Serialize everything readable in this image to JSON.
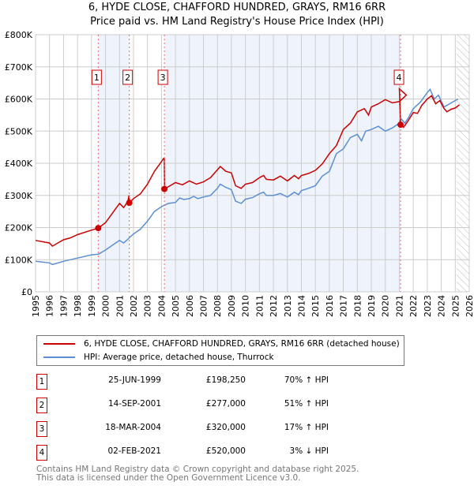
{
  "chart_data": {
    "type": "line",
    "title": "6, HYDE CLOSE, CHAFFORD HUNDRED, GRAYS, RM16 6RR",
    "subtitle": "Price paid vs. HM Land Registry's House Price Index (HPI)",
    "xlim": [
      1995,
      2026
    ],
    "ylim": [
      0,
      800000
    ],
    "yticks": [
      {
        "v": 0,
        "label": "£0"
      },
      {
        "v": 100000,
        "label": "£100K"
      },
      {
        "v": 200000,
        "label": "£200K"
      },
      {
        "v": 300000,
        "label": "£300K"
      },
      {
        "v": 400000,
        "label": "£400K"
      },
      {
        "v": 500000,
        "label": "£500K"
      },
      {
        "v": 600000,
        "label": "£600K"
      },
      {
        "v": 700000,
        "label": "£700K"
      },
      {
        "v": 800000,
        "label": "£800K"
      }
    ],
    "xticks": [
      "1995",
      "1996",
      "1997",
      "1998",
      "1999",
      "2000",
      "2001",
      "2002",
      "2003",
      "2004",
      "2005",
      "2006",
      "2007",
      "2008",
      "2009",
      "2010",
      "2011",
      "2012",
      "2013",
      "2014",
      "2015",
      "2016",
      "2017",
      "2018",
      "2019",
      "2020",
      "2021",
      "2022",
      "2023",
      "2024",
      "2025",
      "2026"
    ],
    "grid": true,
    "forecast_hatch_from": 2025.1,
    "shaded_ranges": [
      [
        1999.48,
        2001.7
      ],
      [
        2004.21,
        2021.09
      ]
    ],
    "series": [
      {
        "name": "6, HYDE CLOSE, CHAFFORD HUNDRED, GRAYS, RM16 6RR (detached house)",
        "color": "#cc0000",
        "points": [
          [
            1995,
            160
          ],
          [
            1996,
            152
          ],
          [
            1996.2,
            142
          ],
          [
            1997,
            162
          ],
          [
            1997.5,
            168
          ],
          [
            1998,
            178
          ],
          [
            1999,
            192
          ],
          [
            1999.48,
            198
          ],
          [
            2000,
            215
          ],
          [
            2000.5,
            245
          ],
          [
            2001,
            275
          ],
          [
            2001.3,
            262
          ],
          [
            2001.6,
            282
          ],
          [
            2001.68,
            300
          ],
          [
            2001.72,
            277
          ],
          [
            2002,
            290
          ],
          [
            2002.5,
            305
          ],
          [
            2003,
            335
          ],
          [
            2003.5,
            375
          ],
          [
            2004,
            405
          ],
          [
            2004.15,
            415
          ],
          [
            2004.2,
            415
          ],
          [
            2004.22,
            320
          ],
          [
            2005,
            340
          ],
          [
            2005.5,
            333
          ],
          [
            2006,
            345
          ],
          [
            2006.5,
            335
          ],
          [
            2007,
            342
          ],
          [
            2007.5,
            355
          ],
          [
            2008,
            380
          ],
          [
            2008.2,
            390
          ],
          [
            2008.6,
            375
          ],
          [
            2009,
            370
          ],
          [
            2009.3,
            330
          ],
          [
            2009.7,
            322
          ],
          [
            2010,
            335
          ],
          [
            2010.5,
            340
          ],
          [
            2011,
            355
          ],
          [
            2011.3,
            362
          ],
          [
            2011.5,
            350
          ],
          [
            2012,
            348
          ],
          [
            2012.5,
            360
          ],
          [
            2013,
            345
          ],
          [
            2013.5,
            362
          ],
          [
            2013.8,
            352
          ],
          [
            2014,
            362
          ],
          [
            2014.5,
            368
          ],
          [
            2015,
            378
          ],
          [
            2015.5,
            398
          ],
          [
            2016,
            430
          ],
          [
            2016.5,
            455
          ],
          [
            2017,
            505
          ],
          [
            2017.5,
            525
          ],
          [
            2018,
            560
          ],
          [
            2018.5,
            570
          ],
          [
            2018.8,
            550
          ],
          [
            2019,
            575
          ],
          [
            2019.5,
            585
          ],
          [
            2020,
            598
          ],
          [
            2020.5,
            588
          ],
          [
            2021,
            592
          ],
          [
            2021.5,
            612
          ],
          [
            2021.95,
            632
          ],
          [
            2022.05,
            520
          ]
        ]
      },
      {
        "name": "HPI: Average price, detached house, Thurrock",
        "color": "#5b8fd4",
        "points": [
          [
            1995,
            95
          ],
          [
            1996,
            90
          ],
          [
            1996.2,
            85
          ],
          [
            1997,
            95
          ],
          [
            1998,
            105
          ],
          [
            1999,
            115
          ],
          [
            1999.5,
            117
          ],
          [
            2000,
            130
          ],
          [
            2000.5,
            145
          ],
          [
            2001,
            160
          ],
          [
            2001.3,
            152
          ],
          [
            2001.7,
            168
          ],
          [
            2002,
            180
          ],
          [
            2002.5,
            195
          ],
          [
            2003,
            220
          ],
          [
            2003.5,
            250
          ],
          [
            2004,
            265
          ],
          [
            2004.5,
            275
          ],
          [
            2005,
            278
          ],
          [
            2005.3,
            292
          ],
          [
            2005.6,
            287
          ],
          [
            2006,
            290
          ],
          [
            2006.3,
            297
          ],
          [
            2006.6,
            290
          ],
          [
            2007,
            295
          ],
          [
            2007.5,
            300
          ],
          [
            2008,
            322
          ],
          [
            2008.2,
            335
          ],
          [
            2008.6,
            325
          ],
          [
            2009,
            318
          ],
          [
            2009.3,
            282
          ],
          [
            2009.7,
            275
          ],
          [
            2010,
            288
          ],
          [
            2010.5,
            293
          ],
          [
            2011,
            305
          ],
          [
            2011.3,
            310
          ],
          [
            2011.5,
            300
          ],
          [
            2012,
            300
          ],
          [
            2012.5,
            306
          ],
          [
            2013,
            295
          ],
          [
            2013.5,
            310
          ],
          [
            2013.8,
            302
          ],
          [
            2014,
            315
          ],
          [
            2014.5,
            322
          ],
          [
            2015,
            330
          ],
          [
            2015.5,
            360
          ],
          [
            2016,
            375
          ],
          [
            2016.5,
            430
          ],
          [
            2017,
            445
          ],
          [
            2017.5,
            480
          ],
          [
            2018,
            490
          ],
          [
            2018.3,
            470
          ],
          [
            2018.6,
            500
          ],
          [
            2019,
            505
          ],
          [
            2019.5,
            515
          ],
          [
            2020,
            500
          ],
          [
            2020.5,
            510
          ],
          [
            2021,
            525
          ],
          [
            2021.1,
            540
          ],
          [
            2021.4,
            525
          ],
          [
            2021.7,
            545
          ],
          [
            2022,
            570
          ],
          [
            2022.5,
            590
          ],
          [
            2023,
            620
          ],
          [
            2023.2,
            630
          ],
          [
            2023.5,
            600
          ],
          [
            2023.8,
            612
          ],
          [
            2024.2,
            575
          ],
          [
            2024.6,
            585
          ],
          [
            2025,
            595
          ],
          [
            2025.2,
            600
          ]
        ]
      }
    ],
    "red_tail": [
      [
        2022.05,
        520
      ],
      [
        2022.3,
        512
      ],
      [
        2022.6,
        530
      ],
      [
        2023,
        558
      ],
      [
        2023.3,
        555
      ],
      [
        2023.6,
        580
      ],
      [
        2024,
        600
      ],
      [
        2024.3,
        610
      ],
      [
        2024.6,
        585
      ],
      [
        2024.9,
        595
      ],
      [
        2025.2,
        570
      ],
      [
        2025.4,
        560
      ],
      [
        2025.7,
        568
      ],
      [
        2026.0,
        572
      ],
      [
        2026.3,
        582
      ]
    ],
    "sales": [
      {
        "n": "1",
        "x": 1999.48,
        "y": 198250
      },
      {
        "n": "2",
        "x": 2001.7,
        "y": 277000
      },
      {
        "n": "3",
        "x": 2004.21,
        "y": 320000
      },
      {
        "n": "4",
        "x": 2021.09,
        "y": 520000
      }
    ]
  },
  "legend": {
    "property": "6, HYDE CLOSE, CHAFFORD HUNDRED, GRAYS, RM16 6RR (detached house)",
    "hpi": "HPI: Average price, detached house, Thurrock"
  },
  "sales_table": [
    {
      "n": "1",
      "date": "25-JUN-1999",
      "price": "£198,250",
      "hpi": "70% ↑ HPI"
    },
    {
      "n": "2",
      "date": "14-SEP-2001",
      "price": "£277,000",
      "hpi": "51% ↑ HPI"
    },
    {
      "n": "3",
      "date": "18-MAR-2004",
      "price": "£320,000",
      "hpi": "17% ↑ HPI"
    },
    {
      "n": "4",
      "date": "02-FEB-2021",
      "price": "£520,000",
      "hpi": "3% ↓ HPI"
    }
  ],
  "footer": {
    "line1": "Contains HM Land Registry data © Crown copyright and database right 2025.",
    "line2": "This data is licensed under the Open Government Licence v3.0."
  }
}
